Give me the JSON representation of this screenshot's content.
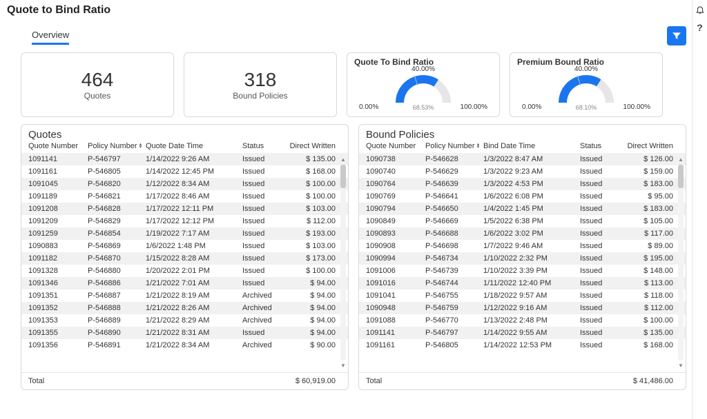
{
  "page": {
    "title": "Quote to Bind Ratio"
  },
  "tabs": {
    "overview": "Overview"
  },
  "kpi": {
    "quotes": {
      "value": "464",
      "label": "Quotes"
    },
    "bound": {
      "value": "318",
      "label": "Bound Policies"
    }
  },
  "gauges": {
    "qtb": {
      "title": "Quote To Bind Ratio",
      "top_label": "40.00%",
      "value_label": "68.53%",
      "value_pct": 68.53,
      "threshold_pct": 40.0,
      "left_label": "0.00%",
      "right_label": "100.00%",
      "arc_color": "#1976f0",
      "bg_arc_color": "#e6e6e6",
      "tick_color": "#bdbdbd"
    },
    "pbr": {
      "title": "Premium Bound Ratio",
      "top_label": "40.00%",
      "value_label": "68.10%",
      "value_pct": 68.1,
      "threshold_pct": 40.0,
      "left_label": "0.00%",
      "right_label": "100.00%",
      "arc_color": "#1976f0",
      "bg_arc_color": "#e6e6e6",
      "tick_color": "#bdbdbd"
    }
  },
  "quotes_table": {
    "title": "Quotes",
    "sorted_col": 1,
    "columns": [
      "Quote Number",
      "Policy Number",
      "Quote Date Time",
      "Status",
      "Direct Written"
    ],
    "rows": [
      [
        "1091141",
        "P-546797",
        "1/14/2022 9:26 AM",
        "Issued",
        "$ 135.00"
      ],
      [
        "1091161",
        "P-546805",
        "1/14/2022 12:45 PM",
        "Issued",
        "$ 168.00"
      ],
      [
        "1091045",
        "P-546820",
        "1/12/2022 8:34 AM",
        "Issued",
        "$ 100.00"
      ],
      [
        "1091189",
        "P-546821",
        "1/17/2022 8:46 AM",
        "Issued",
        "$ 100.00"
      ],
      [
        "1091208",
        "P-546828",
        "1/17/2022 12:11 PM",
        "Issued",
        "$ 103.00"
      ],
      [
        "1091209",
        "P-546829",
        "1/17/2022 12:12 PM",
        "Issued",
        "$ 112.00"
      ],
      [
        "1091259",
        "P-546854",
        "1/19/2022 7:17 AM",
        "Issued",
        "$ 193.00"
      ],
      [
        "1090883",
        "P-546869",
        "1/6/2022 1:48 PM",
        "Issued",
        "$ 103.00"
      ],
      [
        "1091182",
        "P-546870",
        "1/15/2022 8:28 AM",
        "Issued",
        "$ 173.00"
      ],
      [
        "1091328",
        "P-546880",
        "1/20/2022 2:01 PM",
        "Issued",
        "$ 100.00"
      ],
      [
        "1091346",
        "P-546886",
        "1/21/2022 7:01 AM",
        "Issued",
        "$ 94.00"
      ],
      [
        "1091351",
        "P-546887",
        "1/21/2022 8:19 AM",
        "Archived",
        "$ 94.00"
      ],
      [
        "1091352",
        "P-546888",
        "1/21/2022 8:26 AM",
        "Archived",
        "$ 94.00"
      ],
      [
        "1091353",
        "P-546889",
        "1/21/2022 8:29 AM",
        "Archived",
        "$ 94.00"
      ],
      [
        "1091355",
        "P-546890",
        "1/21/2022 8:31 AM",
        "Issued",
        "$ 94.00"
      ],
      [
        "1091356",
        "P-546891",
        "1/21/2022 8:34 AM",
        "Archived",
        "$ 90.00"
      ]
    ],
    "footer_label": "Total",
    "footer_value": "$ 60,919.00"
  },
  "bound_table": {
    "title": "Bound Policies",
    "sorted_col": 1,
    "columns": [
      "Quote Number",
      "Policy Number",
      "Bind Date Time",
      "Status",
      "Direct Written"
    ],
    "rows": [
      [
        "1090738",
        "P-546628",
        "1/3/2022 8:47 AM",
        "Issued",
        "$ 126.00"
      ],
      [
        "1090740",
        "P-546629",
        "1/3/2022 9:23 AM",
        "Issued",
        "$ 159.00"
      ],
      [
        "1090764",
        "P-546639",
        "1/3/2022 4:53 PM",
        "Issued",
        "$ 183.00"
      ],
      [
        "1090769",
        "P-546641",
        "1/6/2022 6:08 PM",
        "Issued",
        "$ 95.00"
      ],
      [
        "1090794",
        "P-546650",
        "1/4/2022 1:45 PM",
        "Issued",
        "$ 183.00"
      ],
      [
        "1090849",
        "P-546669",
        "1/5/2022 6:38 PM",
        "Issued",
        "$ 105.00"
      ],
      [
        "1090893",
        "P-546688",
        "1/6/2022 3:02 PM",
        "Issued",
        "$ 117.00"
      ],
      [
        "1090908",
        "P-546698",
        "1/7/2022 9:46 AM",
        "Issued",
        "$ 89.00"
      ],
      [
        "1090994",
        "P-546734",
        "1/10/2022 2:32 PM",
        "Issued",
        "$ 195.00"
      ],
      [
        "1091006",
        "P-546739",
        "1/10/2022 3:39 PM",
        "Issued",
        "$ 148.00"
      ],
      [
        "1091016",
        "P-546744",
        "1/11/2022 12:40 PM",
        "Issued",
        "$ 113.00"
      ],
      [
        "1091041",
        "P-546755",
        "1/18/2022 9:57 AM",
        "Issued",
        "$ 118.00"
      ],
      [
        "1090948",
        "P-546759",
        "1/12/2022 9:16 AM",
        "Issued",
        "$ 112.00"
      ],
      [
        "1091088",
        "P-546770",
        "1/13/2022 2:48 PM",
        "Issued",
        "$ 100.00"
      ],
      [
        "1091141",
        "P-546797",
        "1/14/2022 9:55 AM",
        "Issued",
        "$ 135.00"
      ],
      [
        "1091161",
        "P-546805",
        "1/14/2022 12:53 PM",
        "Issued",
        "$ 168.00"
      ]
    ],
    "footer_label": "Total",
    "footer_value": "$ 41,486.00"
  }
}
